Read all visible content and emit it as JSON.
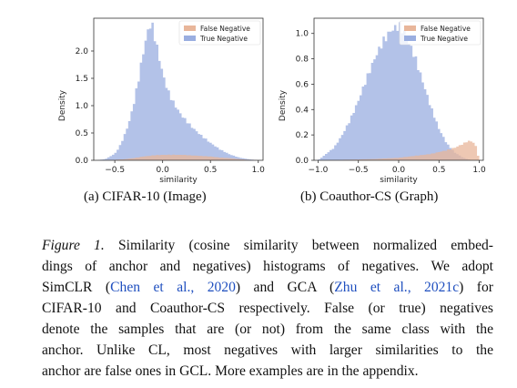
{
  "chart_data": [
    {
      "type": "area",
      "subcaption": "(a) CIFAR-10 (Image)",
      "xlabel": "similarity",
      "ylabel": "Density",
      "xlim": [
        -0.72,
        1.05
      ],
      "ylim": [
        0,
        2.6
      ],
      "xticks": [
        "−0.5",
        "0.0",
        "0.5",
        "1.0"
      ],
      "xtick_values": [
        -0.5,
        0.0,
        0.5,
        1.0
      ],
      "yticks": [
        "0.0",
        "0.5",
        "1.0",
        "1.5",
        "2.0"
      ],
      "ytick_values": [
        0.0,
        0.5,
        1.0,
        1.5,
        2.0
      ],
      "legend_position": "top-right",
      "series": [
        {
          "name": "False Negative",
          "color": "#e8b69a",
          "x": [
            -0.7,
            -0.5,
            -0.4,
            -0.3,
            -0.2,
            -0.1,
            0.0,
            0.1,
            0.2,
            0.3,
            0.4,
            0.5,
            0.6,
            0.7,
            0.8,
            0.9,
            1.0
          ],
          "values": [
            0.0,
            0.01,
            0.02,
            0.04,
            0.07,
            0.09,
            0.1,
            0.1,
            0.1,
            0.09,
            0.08,
            0.07,
            0.05,
            0.04,
            0.02,
            0.01,
            0.0
          ]
        },
        {
          "name": "True Negative",
          "color": "#9aaee0",
          "x": [
            -0.7,
            -0.6,
            -0.5,
            -0.45,
            -0.4,
            -0.35,
            -0.3,
            -0.25,
            -0.2,
            -0.15,
            -0.12,
            -0.1,
            -0.05,
            0.0,
            0.05,
            0.1,
            0.15,
            0.2,
            0.3,
            0.4,
            0.5,
            0.6,
            0.7,
            0.8,
            0.9,
            1.0
          ],
          "values": [
            0.0,
            0.02,
            0.12,
            0.25,
            0.45,
            0.7,
            1.05,
            1.5,
            2.0,
            2.4,
            2.5,
            2.42,
            2.0,
            1.6,
            1.3,
            1.1,
            0.95,
            0.82,
            0.62,
            0.46,
            0.32,
            0.2,
            0.11,
            0.05,
            0.02,
            0.0
          ]
        }
      ]
    },
    {
      "type": "area",
      "subcaption": "(b) Coauthor-CS (Graph)",
      "xlabel": "similarity",
      "ylabel": "Density",
      "xlim": [
        -1.05,
        1.05
      ],
      "ylim": [
        0,
        1.12
      ],
      "xticks": [
        "−1.0",
        "−0.5",
        "0.0",
        "0.5",
        "1.0"
      ],
      "xtick_values": [
        -1.0,
        -0.5,
        0.0,
        0.5,
        1.0
      ],
      "yticks": [
        "0.0",
        "0.2",
        "0.4",
        "0.6",
        "0.8",
        "1.0"
      ],
      "ytick_values": [
        0.0,
        0.2,
        0.4,
        0.6,
        0.8,
        1.0
      ],
      "legend_position": "top-right",
      "series": [
        {
          "name": "False Negative",
          "color": "#e8b69a",
          "x": [
            -1.0,
            -0.6,
            -0.3,
            0.0,
            0.2,
            0.4,
            0.5,
            0.6,
            0.7,
            0.8,
            0.85,
            0.9,
            0.95,
            1.0
          ],
          "values": [
            0.0,
            0.005,
            0.01,
            0.02,
            0.035,
            0.05,
            0.065,
            0.08,
            0.1,
            0.13,
            0.15,
            0.15,
            0.13,
            0.0
          ]
        },
        {
          "name": "True Negative",
          "color": "#9aaee0",
          "x": [
            -1.0,
            -0.9,
            -0.8,
            -0.7,
            -0.6,
            -0.5,
            -0.4,
            -0.3,
            -0.2,
            -0.1,
            0.0,
            0.05,
            0.1,
            0.2,
            0.3,
            0.4,
            0.5,
            0.6,
            0.7,
            0.8,
            0.9,
            1.0
          ],
          "values": [
            0.0,
            0.05,
            0.1,
            0.2,
            0.32,
            0.47,
            0.64,
            0.8,
            0.93,
            1.02,
            1.06,
            1.03,
            0.97,
            0.82,
            0.62,
            0.42,
            0.25,
            0.13,
            0.06,
            0.02,
            0.0,
            0.0
          ]
        }
      ]
    }
  ],
  "caption": {
    "lines": [
      {
        "parts": [
          {
            "t": "Figure 1.",
            "style": "label"
          },
          {
            "t": " Similarity (cosine similarity between normalized embed-"
          }
        ]
      },
      {
        "parts": [
          {
            "t": "dings of anchor and negatives) histograms of negatives. We adopt"
          }
        ]
      },
      {
        "parts": [
          {
            "t": "SimCLR ("
          },
          {
            "t": "Chen et al., 2020",
            "style": "cite"
          },
          {
            "t": ") and GCA ("
          },
          {
            "t": "Zhu et al., 2021c",
            "style": "cite"
          },
          {
            "t": ") for"
          }
        ]
      },
      {
        "parts": [
          {
            "t": "CIFAR-10 and Coauthor-CS respectively. False (or true) negatives"
          }
        ]
      },
      {
        "parts": [
          {
            "t": "denote the samples that are (or not) from the same class with the"
          }
        ]
      },
      {
        "parts": [
          {
            "t": "anchor. Unlike CL, most negatives with larger similarities to the"
          }
        ]
      },
      {
        "parts": [
          {
            "t": "anchor are false ones in GCL. More examples are in the appendix."
          }
        ]
      }
    ]
  }
}
